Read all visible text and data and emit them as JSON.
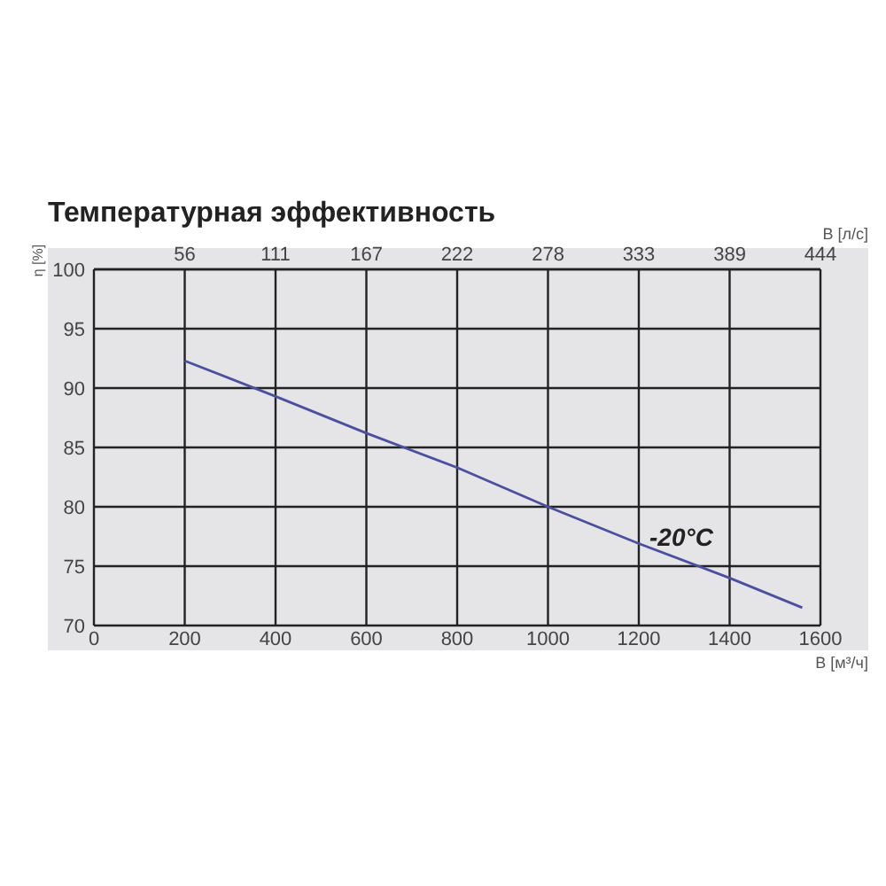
{
  "chart_data": {
    "type": "line",
    "title": "Температурная эффективность",
    "xlabel": "В [м³/ч]",
    "x2label": "В [л/с]",
    "ylabel": "η [%]",
    "x": [
      200,
      400,
      600,
      800,
      1000,
      1200,
      1400,
      1560
    ],
    "series": [
      {
        "name": "-20°C",
        "color": "#4b4f9e",
        "values": [
          92.3,
          89.3,
          86.2,
          83.3,
          80,
          76.9,
          74,
          71.5
        ]
      }
    ],
    "xlim": [
      0,
      1600
    ],
    "xticks": [
      0,
      200,
      400,
      600,
      800,
      1000,
      1200,
      1400,
      1600
    ],
    "x2lim": [
      0,
      444.4
    ],
    "x2ticks": [
      {
        "value": 55.6,
        "label": "56"
      },
      {
        "value": 111.1,
        "label": "111"
      },
      {
        "value": 166.7,
        "label": "167"
      },
      {
        "value": 222.2,
        "label": "222"
      },
      {
        "value": 277.8,
        "label": "278"
      },
      {
        "value": 333.3,
        "label": "333"
      },
      {
        "value": 388.9,
        "label": "389"
      },
      {
        "value": 444.4,
        "label": "444"
      }
    ],
    "ylim": [
      70,
      100
    ],
    "yticks": [
      70,
      75,
      80,
      85,
      90,
      95,
      100
    ],
    "grid": true
  }
}
